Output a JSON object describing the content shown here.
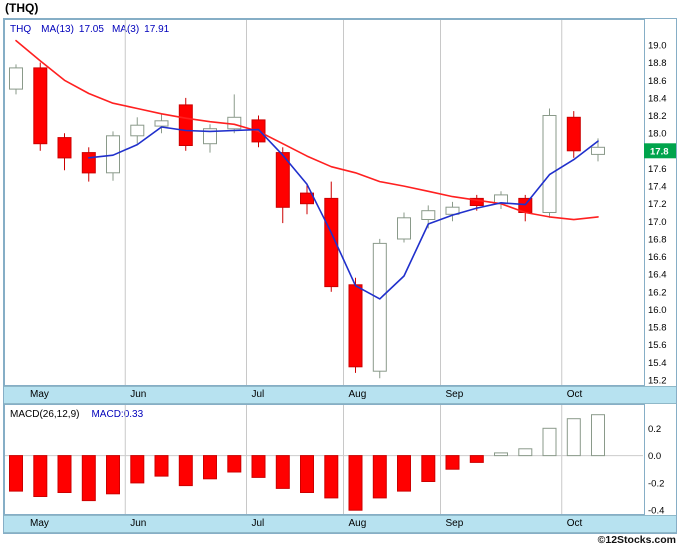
{
  "page": {
    "title": "(THQ)",
    "copyright": "©12Stocks.com"
  },
  "main_chart": {
    "legend": {
      "symbol": "THQ",
      "ma13_label": "MA(13)",
      "ma13_value": "17.05",
      "ma3_label": "MA(3)",
      "ma3_value": "17.91"
    },
    "price_ticks": [
      "19.0",
      "18.8",
      "18.6",
      "18.4",
      "18.2",
      "18.0",
      "17.8",
      "17.6",
      "17.4",
      "17.2",
      "17.0",
      "16.8",
      "16.6",
      "16.4",
      "16.2",
      "16.0",
      "15.8",
      "15.6",
      "15.4",
      "15.2"
    ],
    "last_price_badge": "17.8"
  },
  "macd_panel": {
    "legend_left": "MACD(26,12,9)",
    "legend_right": "MACD:0.33",
    "ticks": [
      "0.2",
      "0.0",
      "-0.2",
      "-0.4"
    ]
  },
  "colors": {
    "up_outline": "#8a9a8a",
    "down_fill": "#ff0000",
    "down_outline": "#cc0000",
    "ma13_line": "#ff2020",
    "ma3_line": "#2030cc",
    "grid_line": "#c8c8c8",
    "panel_border": "#86aec6",
    "strip_bg": "#b7e2f0",
    "badge_bg": "#00a44c",
    "badge_text": "#ffffff",
    "legend_blue": "#0000bb",
    "axis_text": "#000000"
  },
  "chart_data": {
    "type": "candlestick",
    "symbol": "THQ",
    "title": "(THQ)",
    "ylim": [
      15.2,
      19.0
    ],
    "price_tick_step": 0.2,
    "last_close": 17.8,
    "months": [
      {
        "label": "May",
        "start_index": 0
      },
      {
        "label": "Jun",
        "start_index": 5
      },
      {
        "label": "Jul",
        "start_index": 10
      },
      {
        "label": "Aug",
        "start_index": 14
      },
      {
        "label": "Sep",
        "start_index": 18
      },
      {
        "label": "Oct",
        "start_index": 23
      }
    ],
    "candles": [
      {
        "o": 18.5,
        "h": 18.78,
        "l": 18.44,
        "c": 18.74,
        "dir": "up"
      },
      {
        "o": 18.74,
        "h": 18.8,
        "l": 17.8,
        "c": 17.88,
        "dir": "down"
      },
      {
        "o": 17.95,
        "h": 18.0,
        "l": 17.58,
        "c": 17.72,
        "dir": "down"
      },
      {
        "o": 17.78,
        "h": 17.84,
        "l": 17.45,
        "c": 17.55,
        "dir": "down"
      },
      {
        "o": 17.55,
        "h": 18.02,
        "l": 17.46,
        "c": 17.97,
        "dir": "up"
      },
      {
        "o": 17.97,
        "h": 18.18,
        "l": 17.88,
        "c": 18.09,
        "dir": "up"
      },
      {
        "o": 18.08,
        "h": 18.22,
        "l": 18.0,
        "c": 18.14,
        "dir": "up"
      },
      {
        "o": 18.32,
        "h": 18.4,
        "l": 17.8,
        "c": 17.86,
        "dir": "down"
      },
      {
        "o": 17.88,
        "h": 18.1,
        "l": 17.78,
        "c": 18.05,
        "dir": "up"
      },
      {
        "o": 18.05,
        "h": 18.44,
        "l": 18.0,
        "c": 18.18,
        "dir": "up"
      },
      {
        "o": 18.15,
        "h": 18.2,
        "l": 17.84,
        "c": 17.9,
        "dir": "down"
      },
      {
        "o": 17.78,
        "h": 17.84,
        "l": 16.98,
        "c": 17.16,
        "dir": "down"
      },
      {
        "o": 17.32,
        "h": 17.42,
        "l": 17.08,
        "c": 17.2,
        "dir": "down"
      },
      {
        "o": 17.26,
        "h": 17.45,
        "l": 16.2,
        "c": 16.26,
        "dir": "down"
      },
      {
        "o": 16.28,
        "h": 16.36,
        "l": 15.28,
        "c": 15.35,
        "dir": "down"
      },
      {
        "o": 15.3,
        "h": 16.8,
        "l": 15.22,
        "c": 16.75,
        "dir": "up"
      },
      {
        "o": 16.8,
        "h": 17.1,
        "l": 16.76,
        "c": 17.04,
        "dir": "up"
      },
      {
        "o": 17.02,
        "h": 17.18,
        "l": 16.92,
        "c": 17.12,
        "dir": "up"
      },
      {
        "o": 17.08,
        "h": 17.22,
        "l": 17.0,
        "c": 17.16,
        "dir": "up"
      },
      {
        "o": 17.26,
        "h": 17.3,
        "l": 17.12,
        "c": 17.18,
        "dir": "down"
      },
      {
        "o": 17.2,
        "h": 17.34,
        "l": 17.14,
        "c": 17.3,
        "dir": "up"
      },
      {
        "o": 17.26,
        "h": 17.3,
        "l": 17.0,
        "c": 17.1,
        "dir": "down"
      },
      {
        "o": 17.1,
        "h": 18.28,
        "l": 17.04,
        "c": 18.2,
        "dir": "up"
      },
      {
        "o": 18.18,
        "h": 18.25,
        "l": 17.72,
        "c": 17.8,
        "dir": "down"
      },
      {
        "o": 17.76,
        "h": 17.94,
        "l": 17.68,
        "c": 17.84,
        "dir": "up"
      }
    ],
    "ma13": [
      19.05,
      18.82,
      18.6,
      18.45,
      18.34,
      18.28,
      18.22,
      18.17,
      18.13,
      18.1,
      18.02,
      17.88,
      17.74,
      17.62,
      17.55,
      17.45,
      17.4,
      17.34,
      17.28,
      17.24,
      17.2,
      17.1,
      17.05,
      17.02,
      17.05
    ],
    "ma3": [
      null,
      null,
      null,
      17.72,
      17.75,
      17.87,
      18.07,
      18.03,
      18.02,
      18.03,
      18.04,
      17.75,
      17.42,
      16.87,
      16.27,
      16.12,
      16.38,
      16.97,
      17.07,
      17.15,
      17.21,
      17.19,
      17.53,
      17.7,
      17.91
    ],
    "macd": {
      "params": "(26,12,9)",
      "current": 0.33,
      "ylim": [
        -0.5,
        0.35
      ],
      "histogram": [
        -0.26,
        -0.3,
        -0.27,
        -0.33,
        -0.28,
        -0.2,
        -0.15,
        -0.22,
        -0.17,
        -0.12,
        -0.16,
        -0.24,
        -0.27,
        -0.31,
        -0.4,
        -0.31,
        -0.26,
        -0.19,
        -0.1,
        -0.05,
        0.02,
        0.05,
        0.2,
        0.27,
        0.3
      ]
    }
  }
}
